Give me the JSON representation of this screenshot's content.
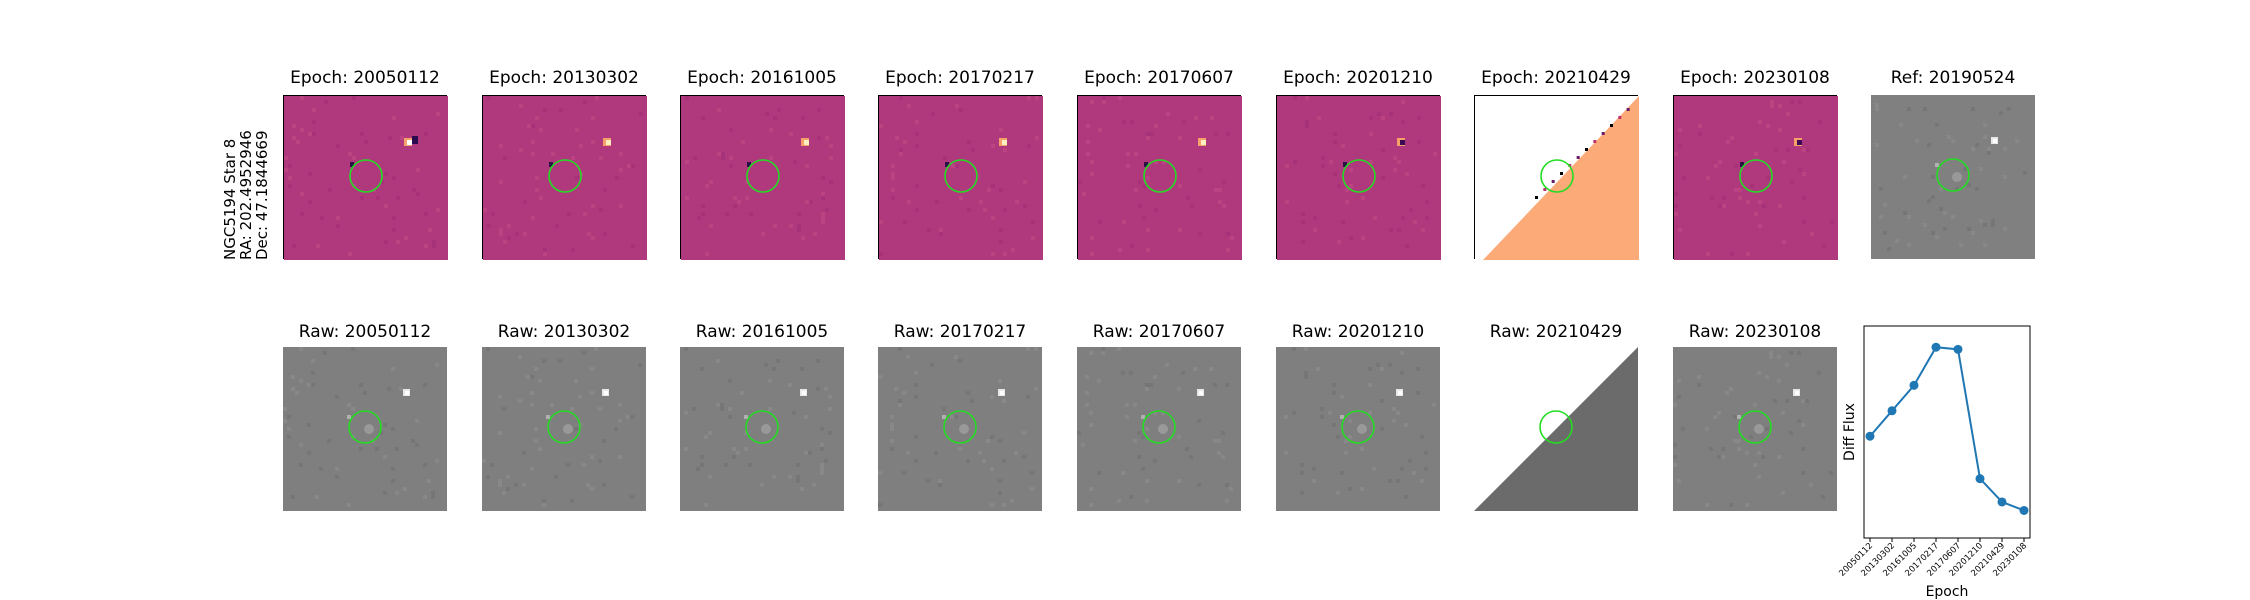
{
  "side_label": {
    "line1": "NGC5194 Star 8",
    "line2": "RA: 202.4952946",
    "line3": "Dec: 47.1844669"
  },
  "diff_row": [
    {
      "title": "Epoch: 20050112",
      "style": "diff"
    },
    {
      "title": "Epoch: 20130302",
      "style": "diff"
    },
    {
      "title": "Epoch: 20161005",
      "style": "diff"
    },
    {
      "title": "Epoch: 20170217",
      "style": "diff"
    },
    {
      "title": "Epoch: 20170607",
      "style": "diff"
    },
    {
      "title": "Epoch: 20201210",
      "style": "diff"
    },
    {
      "title": "Epoch: 20210429",
      "style": "diff-edge"
    },
    {
      "title": "Epoch: 20230108",
      "style": "diff"
    },
    {
      "title": "Ref: 20190524",
      "style": "ref"
    }
  ],
  "raw_row": [
    {
      "title": "Raw: 20050112",
      "style": "raw"
    },
    {
      "title": "Raw: 20130302",
      "style": "raw"
    },
    {
      "title": "Raw: 20161005",
      "style": "raw"
    },
    {
      "title": "Raw: 20170217",
      "style": "raw"
    },
    {
      "title": "Raw: 20170607",
      "style": "raw"
    },
    {
      "title": "Raw: 20201210",
      "style": "raw"
    },
    {
      "title": "Raw: 20210429",
      "style": "raw-edge"
    },
    {
      "title": "Raw: 20230108",
      "style": "raw"
    }
  ],
  "colors": {
    "diff_bg": "#b0397e",
    "edge_fill": "#fcaa78",
    "raw_bg": "#7f7f7f",
    "ref_bg": "#808080",
    "circle": "#22dd22",
    "line": "#1f77b4"
  },
  "chart_data": {
    "type": "line",
    "xlabel": "Epoch",
    "ylabel": "Diff Flux",
    "categories": [
      "20050112",
      "20130302",
      "20161005",
      "20170217",
      "20170607",
      "20201210",
      "20210429",
      "20230108"
    ],
    "values": [
      0.38,
      0.5,
      0.62,
      0.8,
      0.79,
      0.18,
      0.07,
      0.03
    ],
    "ylim": [
      -0.1,
      0.9
    ],
    "grid": false,
    "legend": "none",
    "yticks_shown": false
  }
}
